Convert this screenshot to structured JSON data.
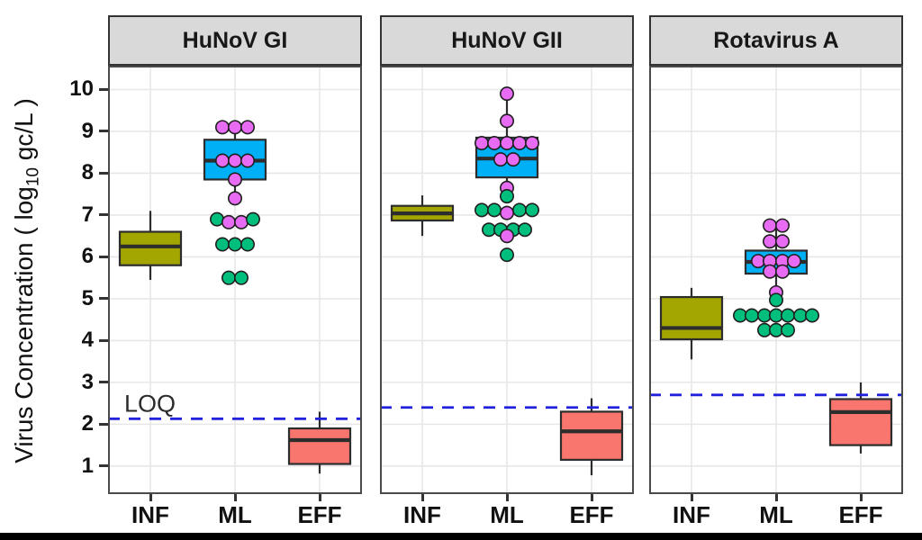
{
  "figure": {
    "ylabel_prefix": "Virus Concentration ( log",
    "ylabel_sub": "10",
    "ylabel_suffix": " gc/L )"
  },
  "chart_data": {
    "type": "boxplot",
    "title": "",
    "xlabel": "",
    "ylabel": "Virus Concentration ( log10 gc/L )",
    "categories": [
      "INF",
      "ML",
      "EFF"
    ],
    "yticks": [
      1,
      2,
      3,
      4,
      5,
      6,
      7,
      8,
      9,
      10
    ],
    "ylim": [
      0.33,
      10.57
    ],
    "grid": true,
    "legend": "none",
    "loq_label": "LOQ",
    "colors": {
      "inf_box": "#A3A500",
      "ml_box": "#00B0F6",
      "eff_box": "#F8766D",
      "pink": "#E76BF3",
      "green": "#00BF7D",
      "loq_line": "#2222DD",
      "header_bg": "#D9D9D9",
      "grid": "#E7E7E7",
      "panel_border": "#4A4A4A",
      "box_stroke": "#2D2D2D",
      "bottom_bar": "#000000"
    },
    "facets": [
      {
        "title": "HuNoV GI",
        "loq": 2.13,
        "show_loq_label": true,
        "boxes": [
          {
            "group": "INF",
            "colorKey": "inf_box",
            "q1": 5.8,
            "median": 6.25,
            "q3": 6.6,
            "lo": 5.45,
            "hi": 7.1
          },
          {
            "group": "ML",
            "colorKey": "ml_box",
            "q1": 7.85,
            "median": 8.3,
            "q3": 8.8,
            "lo": 7.4,
            "hi": 9.1
          },
          {
            "group": "EFF",
            "colorKey": "eff_box",
            "q1": 1.05,
            "median": 1.62,
            "q3": 1.9,
            "lo": 0.82,
            "hi": 2.3
          }
        ],
        "points": [
          {
            "v": 9.1,
            "dx": -14,
            "c": "pink"
          },
          {
            "v": 9.1,
            "dx": 0,
            "c": "pink"
          },
          {
            "v": 9.1,
            "dx": 14,
            "c": "pink"
          },
          {
            "v": 8.3,
            "dx": -14,
            "c": "pink"
          },
          {
            "v": 8.3,
            "dx": 0,
            "c": "pink"
          },
          {
            "v": 8.3,
            "dx": 14,
            "c": "pink"
          },
          {
            "v": 7.85,
            "dx": 0,
            "c": "pink"
          },
          {
            "v": 7.4,
            "dx": 0,
            "c": "pink"
          },
          {
            "v": 6.9,
            "dx": -20,
            "c": "green"
          },
          {
            "v": 6.83,
            "dx": -7,
            "c": "pink"
          },
          {
            "v": 6.83,
            "dx": 7,
            "c": "pink"
          },
          {
            "v": 6.9,
            "dx": 20,
            "c": "green"
          },
          {
            "v": 6.3,
            "dx": -14,
            "c": "green"
          },
          {
            "v": 6.3,
            "dx": 0,
            "c": "green"
          },
          {
            "v": 6.3,
            "dx": 14,
            "c": "green"
          },
          {
            "v": 5.5,
            "dx": -7,
            "c": "green"
          },
          {
            "v": 5.5,
            "dx": 7,
            "c": "green"
          }
        ]
      },
      {
        "title": "HuNoV GII",
        "loq": 2.4,
        "show_loq_label": false,
        "boxes": [
          {
            "group": "INF",
            "colorKey": "inf_box",
            "q1": 6.87,
            "median": 7.04,
            "q3": 7.22,
            "lo": 6.5,
            "hi": 7.47
          },
          {
            "group": "ML",
            "colorKey": "ml_box",
            "q1": 7.9,
            "median": 8.35,
            "q3": 8.85,
            "lo": 7.45,
            "hi": 9.9
          },
          {
            "group": "EFF",
            "colorKey": "eff_box",
            "q1": 1.15,
            "median": 1.83,
            "q3": 2.3,
            "lo": 0.78,
            "hi": 2.62
          }
        ],
        "points": [
          {
            "v": 9.9,
            "dx": 0,
            "c": "pink"
          },
          {
            "v": 9.25,
            "dx": 0,
            "c": "pink"
          },
          {
            "v": 8.72,
            "dx": -28,
            "c": "pink"
          },
          {
            "v": 8.72,
            "dx": -14,
            "c": "pink"
          },
          {
            "v": 8.72,
            "dx": 0,
            "c": "pink"
          },
          {
            "v": 8.72,
            "dx": 14,
            "c": "pink"
          },
          {
            "v": 8.72,
            "dx": 28,
            "c": "pink"
          },
          {
            "v": 8.33,
            "dx": -7,
            "c": "pink"
          },
          {
            "v": 8.33,
            "dx": 7,
            "c": "pink"
          },
          {
            "v": 7.65,
            "dx": 0,
            "c": "pink"
          },
          {
            "v": 7.45,
            "dx": 0,
            "c": "green"
          },
          {
            "v": 7.12,
            "dx": -28,
            "c": "green"
          },
          {
            "v": 7.12,
            "dx": -14,
            "c": "green"
          },
          {
            "v": 7.05,
            "dx": 0,
            "c": "pink"
          },
          {
            "v": 7.12,
            "dx": 14,
            "c": "green"
          },
          {
            "v": 7.12,
            "dx": 28,
            "c": "green"
          },
          {
            "v": 6.65,
            "dx": -20,
            "c": "green"
          },
          {
            "v": 6.65,
            "dx": -7,
            "c": "green"
          },
          {
            "v": 6.65,
            "dx": 7,
            "c": "green"
          },
          {
            "v": 6.65,
            "dx": 20,
            "c": "green"
          },
          {
            "v": 6.5,
            "dx": 0,
            "c": "pink"
          },
          {
            "v": 6.05,
            "dx": 0,
            "c": "green"
          }
        ]
      },
      {
        "title": "Rotavirus A",
        "loq": 2.7,
        "show_loq_label": false,
        "boxes": [
          {
            "group": "INF",
            "colorKey": "inf_box",
            "q1": 4.03,
            "median": 4.3,
            "q3": 5.04,
            "lo": 3.55,
            "hi": 5.26
          },
          {
            "group": "ML",
            "colorKey": "ml_box",
            "q1": 5.6,
            "median": 5.88,
            "q3": 6.15,
            "lo": 5.15,
            "hi": 6.75
          },
          {
            "group": "EFF",
            "colorKey": "eff_box",
            "q1": 1.5,
            "median": 2.29,
            "q3": 2.6,
            "lo": 1.3,
            "hi": 3.0
          }
        ],
        "points": [
          {
            "v": 6.75,
            "dx": -7,
            "c": "pink"
          },
          {
            "v": 6.75,
            "dx": 7,
            "c": "pink"
          },
          {
            "v": 6.37,
            "dx": -7,
            "c": "pink"
          },
          {
            "v": 6.37,
            "dx": 7,
            "c": "pink"
          },
          {
            "v": 5.9,
            "dx": -20,
            "c": "pink"
          },
          {
            "v": 5.9,
            "dx": -7,
            "c": "pink"
          },
          {
            "v": 5.9,
            "dx": 7,
            "c": "pink"
          },
          {
            "v": 5.9,
            "dx": 20,
            "c": "pink"
          },
          {
            "v": 5.65,
            "dx": -7,
            "c": "pink"
          },
          {
            "v": 5.65,
            "dx": 7,
            "c": "pink"
          },
          {
            "v": 5.15,
            "dx": 0,
            "c": "pink"
          },
          {
            "v": 4.97,
            "dx": 0,
            "c": "green"
          },
          {
            "v": 4.6,
            "dx": -40,
            "c": "green"
          },
          {
            "v": 4.6,
            "dx": -27,
            "c": "green"
          },
          {
            "v": 4.6,
            "dx": -13,
            "c": "green"
          },
          {
            "v": 4.6,
            "dx": 0,
            "c": "green"
          },
          {
            "v": 4.6,
            "dx": 13,
            "c": "green"
          },
          {
            "v": 4.6,
            "dx": 27,
            "c": "green"
          },
          {
            "v": 4.6,
            "dx": 40,
            "c": "green"
          },
          {
            "v": 4.25,
            "dx": -13,
            "c": "green"
          },
          {
            "v": 4.25,
            "dx": 0,
            "c": "green"
          },
          {
            "v": 4.25,
            "dx": 13,
            "c": "green"
          }
        ]
      }
    ]
  }
}
